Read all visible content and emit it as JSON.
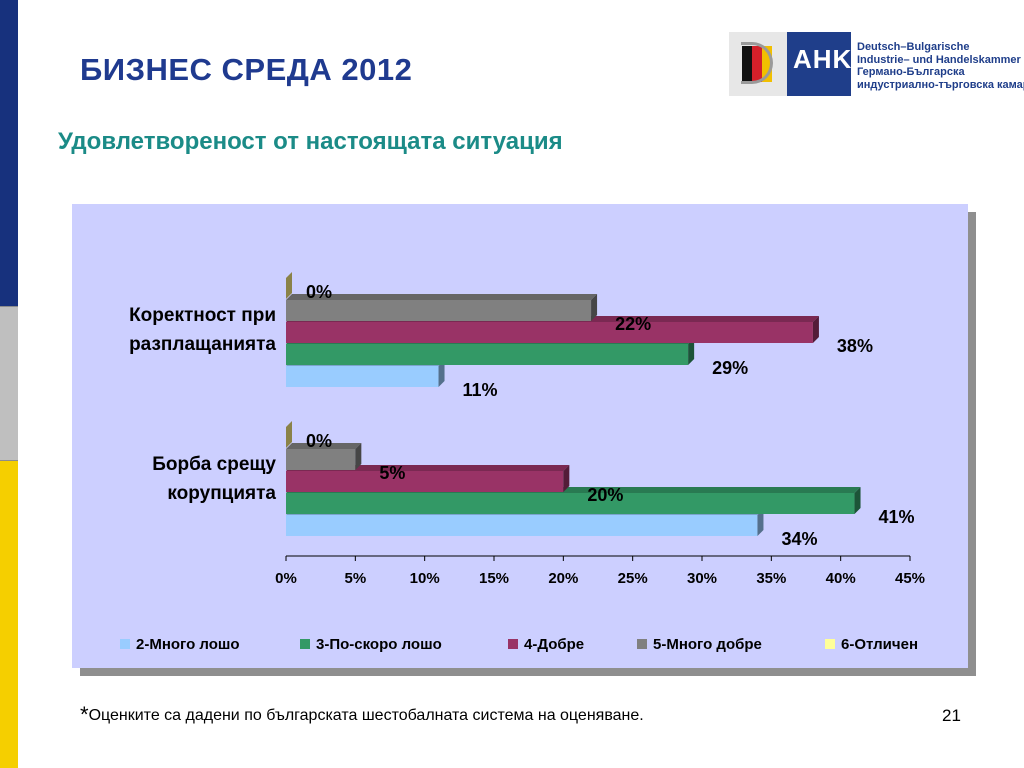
{
  "slide": {
    "title": "БИЗНЕС СРЕДА 2012",
    "subtitle": "Удовлетвореност от настоящата ситуация",
    "footnote_star": "*",
    "footnote_text": "Оценките са дадени по българската шестобалната система на оценяване.",
    "page_number": "21"
  },
  "logo": {
    "abbr": "AHK",
    "line1": "Deutsch–Bulgarische",
    "line2": "Industrie– und Handelskammer",
    "line3": "Германо-Българска",
    "line4": "индустриално-търговска камара"
  },
  "chart_data": {
    "type": "bar",
    "orientation": "horizontal",
    "style": "3d",
    "categories": [
      [
        "Коректност при",
        "разплащанията"
      ],
      [
        "Борба срещу",
        "корупцията"
      ]
    ],
    "series": [
      {
        "name": "2-Много лошо",
        "color": "#99ccff",
        "values": [
          11,
          34
        ]
      },
      {
        "name": "3-По-скоро лошо",
        "color": "#339966",
        "values": [
          29,
          41
        ]
      },
      {
        "name": "4-Добре",
        "color": "#993366",
        "values": [
          38,
          20
        ]
      },
      {
        "name": "5-Много добре",
        "color": "#808080",
        "values": [
          22,
          5
        ]
      },
      {
        "name": "6-Отличен",
        "color": "#ffff99",
        "values": [
          0,
          0
        ]
      }
    ],
    "value_labels": [
      [
        "11%",
        "29%",
        "38%",
        "22%",
        "0%"
      ],
      [
        "34%",
        "41%",
        "20%",
        "5%",
        "0%"
      ]
    ],
    "xlim": [
      0,
      45
    ],
    "xticks": [
      "0%",
      "5%",
      "10%",
      "15%",
      "20%",
      "25%",
      "30%",
      "35%",
      "40%",
      "45%"
    ],
    "legend_position": "bottom",
    "grid": false
  }
}
